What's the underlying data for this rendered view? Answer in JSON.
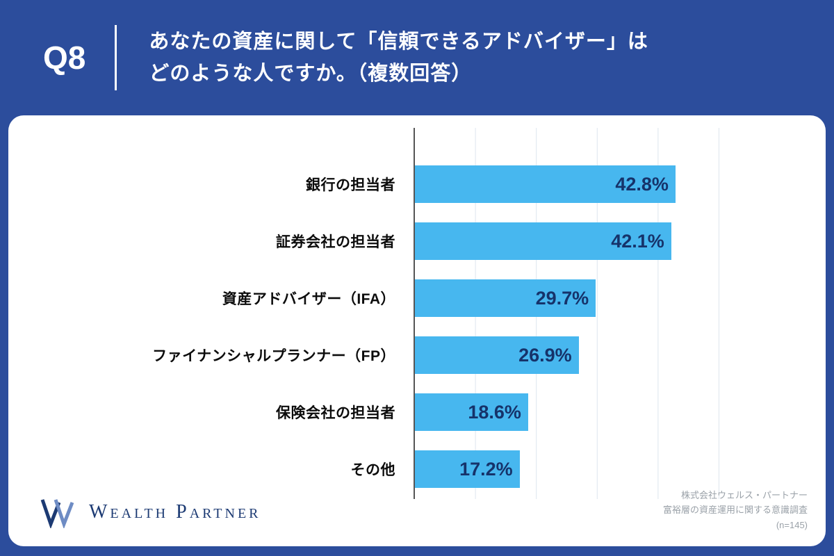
{
  "header": {
    "question_number": "Q8",
    "title_line1": "あなたの資産に関して「信頼できるアドバイザー」は",
    "title_line2": "どのような人ですか。（複数回答）"
  },
  "chart_data": {
    "type": "bar",
    "orientation": "horizontal",
    "title": "あなたの資産に関して「信頼できるアドバイザー」はどのような人ですか。（複数回答）",
    "categories": [
      "銀行の担当者",
      "証券会社の担当者",
      "資産アドバイザー（IFA）",
      "ファイナンシャルプランナー（FP）",
      "保険会社の担当者",
      "その他"
    ],
    "values": [
      42.8,
      42.1,
      29.7,
      26.9,
      18.6,
      17.2
    ],
    "value_labels": [
      "42.8%",
      "42.1%",
      "29.7%",
      "26.9%",
      "18.6%",
      "17.2%"
    ],
    "xlim": [
      0,
      50
    ],
    "grid": true,
    "legend": "none",
    "bar_color": "#47b7ef",
    "value_label_color": "#16336a"
  },
  "footer": {
    "logo_text": "Wealth Partner",
    "source_line1": "株式会社ウェルス・パートナー",
    "source_line2": "富裕層の資産運用に関する意識調査",
    "source_line3": "(n=145)"
  },
  "colors": {
    "background": "#2c4d9c",
    "card": "#ffffff",
    "bar": "#47b7ef",
    "value_text": "#16336a",
    "logo_navy": "#1c3a73"
  }
}
